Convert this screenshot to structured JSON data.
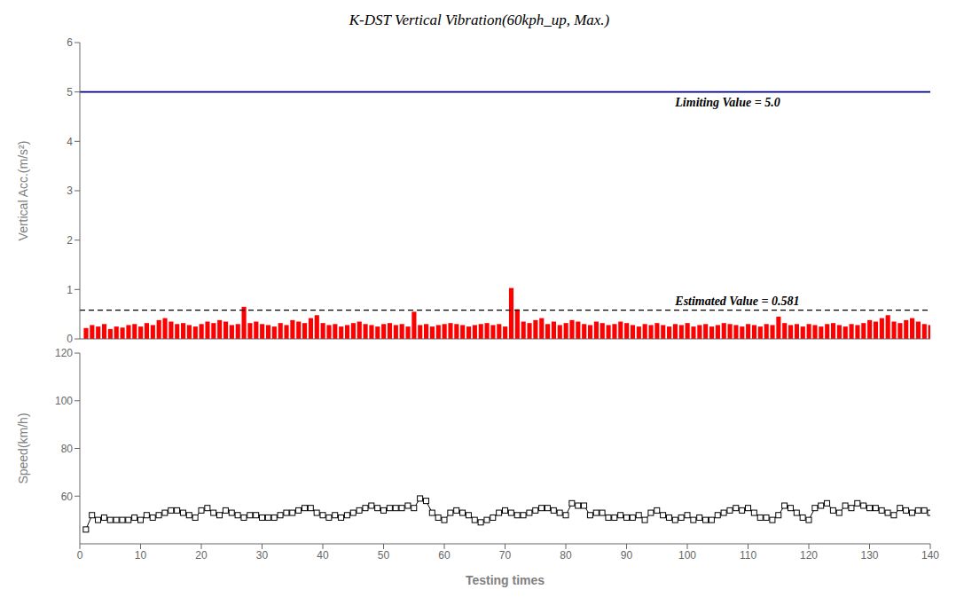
{
  "chart_data": [
    {
      "type": "bar",
      "title": "K-DST Vertical Vibration(60kph_up, Max.)",
      "ylabel": "Vertical Acc.(m/s²)",
      "x": [
        1,
        2,
        3,
        4,
        5,
        6,
        7,
        8,
        9,
        10,
        11,
        12,
        13,
        14,
        15,
        16,
        17,
        18,
        19,
        20,
        21,
        22,
        23,
        24,
        25,
        26,
        27,
        28,
        29,
        30,
        31,
        32,
        33,
        34,
        35,
        36,
        37,
        38,
        39,
        40,
        41,
        42,
        43,
        44,
        45,
        46,
        47,
        48,
        49,
        50,
        51,
        52,
        53,
        54,
        55,
        56,
        57,
        58,
        59,
        60,
        61,
        62,
        63,
        64,
        65,
        66,
        67,
        68,
        69,
        70,
        71,
        72,
        73,
        74,
        75,
        76,
        77,
        78,
        79,
        80,
        81,
        82,
        83,
        84,
        85,
        86,
        87,
        88,
        89,
        90,
        91,
        92,
        93,
        94,
        95,
        96,
        97,
        98,
        99,
        100,
        101,
        102,
        103,
        104,
        105,
        106,
        107,
        108,
        109,
        110,
        111,
        112,
        113,
        114,
        115,
        116,
        117,
        118,
        119,
        120,
        121,
        122,
        123,
        124,
        125,
        126,
        127,
        128,
        129,
        130,
        131,
        132,
        133,
        134,
        135,
        136,
        137,
        138,
        139,
        140
      ],
      "values": [
        0.22,
        0.28,
        0.25,
        0.3,
        0.2,
        0.25,
        0.23,
        0.28,
        0.3,
        0.25,
        0.32,
        0.28,
        0.38,
        0.42,
        0.35,
        0.3,
        0.32,
        0.28,
        0.25,
        0.3,
        0.35,
        0.32,
        0.38,
        0.35,
        0.28,
        0.3,
        0.65,
        0.32,
        0.35,
        0.3,
        0.28,
        0.25,
        0.32,
        0.28,
        0.38,
        0.35,
        0.32,
        0.42,
        0.48,
        0.32,
        0.28,
        0.3,
        0.25,
        0.28,
        0.32,
        0.35,
        0.3,
        0.28,
        0.25,
        0.3,
        0.32,
        0.28,
        0.3,
        0.25,
        0.55,
        0.28,
        0.3,
        0.25,
        0.28,
        0.3,
        0.32,
        0.3,
        0.28,
        0.25,
        0.28,
        0.3,
        0.32,
        0.28,
        0.3,
        0.25,
        1.03,
        0.6,
        0.35,
        0.32,
        0.38,
        0.42,
        0.3,
        0.35,
        0.28,
        0.32,
        0.38,
        0.35,
        0.3,
        0.28,
        0.35,
        0.32,
        0.28,
        0.3,
        0.35,
        0.32,
        0.28,
        0.25,
        0.3,
        0.28,
        0.32,
        0.28,
        0.25,
        0.3,
        0.28,
        0.32,
        0.25,
        0.28,
        0.3,
        0.25,
        0.28,
        0.32,
        0.3,
        0.28,
        0.25,
        0.3,
        0.28,
        0.25,
        0.3,
        0.28,
        0.45,
        0.32,
        0.28,
        0.3,
        0.25,
        0.3,
        0.28,
        0.25,
        0.3,
        0.32,
        0.28,
        0.25,
        0.3,
        0.28,
        0.32,
        0.38,
        0.35,
        0.42,
        0.48,
        0.35,
        0.32,
        0.38,
        0.42,
        0.35,
        0.3,
        0.28
      ],
      "color": "#FF0000",
      "xlim": [
        0,
        140
      ],
      "xticks": [
        0,
        10,
        20,
        30,
        40,
        50,
        60,
        70,
        80,
        90,
        100,
        110,
        120,
        130,
        140
      ],
      "ylim": [
        0,
        6
      ],
      "yticks": [
        0,
        1,
        2,
        3,
        4,
        5,
        6
      ],
      "tick_labels": "y",
      "grid": false,
      "lines": [
        {
          "value": 5.0,
          "label": "Limiting Value = 5.0",
          "color": "#00008B",
          "line_style": "solid"
        },
        {
          "value": 0.581,
          "label": "Estimated Value = 0.581",
          "color": "#000000",
          "line_style": "dashed"
        }
      ]
    },
    {
      "type": "line",
      "xlabel": "Testing times",
      "ylabel": "Speed(km/h)",
      "x": [
        1,
        2,
        3,
        4,
        5,
        6,
        7,
        8,
        9,
        10,
        11,
        12,
        13,
        14,
        15,
        16,
        17,
        18,
        19,
        20,
        21,
        22,
        23,
        24,
        25,
        26,
        27,
        28,
        29,
        30,
        31,
        32,
        33,
        34,
        35,
        36,
        37,
        38,
        39,
        40,
        41,
        42,
        43,
        44,
        45,
        46,
        47,
        48,
        49,
        50,
        51,
        52,
        53,
        54,
        55,
        56,
        57,
        58,
        59,
        60,
        61,
        62,
        63,
        64,
        65,
        66,
        67,
        68,
        69,
        70,
        71,
        72,
        73,
        74,
        75,
        76,
        77,
        78,
        79,
        80,
        81,
        82,
        83,
        84,
        85,
        86,
        87,
        88,
        89,
        90,
        91,
        92,
        93,
        94,
        95,
        96,
        97,
        98,
        99,
        100,
        101,
        102,
        103,
        104,
        105,
        106,
        107,
        108,
        109,
        110,
        111,
        112,
        113,
        114,
        115,
        116,
        117,
        118,
        119,
        120,
        121,
        122,
        123,
        124,
        125,
        126,
        127,
        128,
        129,
        130,
        131,
        132,
        133,
        134,
        135,
        136,
        137,
        138,
        139,
        140
      ],
      "values": [
        46,
        52,
        50,
        51,
        50,
        50,
        50,
        50,
        51,
        50,
        52,
        51,
        52,
        53,
        54,
        54,
        53,
        52,
        51,
        54,
        55,
        53,
        52,
        54,
        53,
        52,
        51,
        52,
        52,
        51,
        51,
        51,
        52,
        53,
        53,
        54,
        55,
        55,
        53,
        52,
        51,
        52,
        51,
        52,
        53,
        54,
        55,
        56,
        55,
        54,
        55,
        55,
        55,
        56,
        55,
        59,
        58,
        53,
        51,
        50,
        53,
        54,
        53,
        52,
        50,
        49,
        50,
        51,
        53,
        54,
        53,
        52,
        52,
        53,
        54,
        55,
        55,
        54,
        53,
        52,
        57,
        56,
        56,
        52,
        53,
        53,
        51,
        51,
        52,
        51,
        51,
        52,
        50,
        53,
        54,
        52,
        51,
        50,
        51,
        52,
        50,
        51,
        50,
        50,
        52,
        53,
        54,
        55,
        54,
        55,
        53,
        51,
        51,
        50,
        52,
        56,
        55,
        53,
        51,
        50,
        55,
        56,
        57,
        54,
        53,
        56,
        55,
        57,
        56,
        55,
        55,
        54,
        53,
        52,
        55,
        54,
        53,
        54,
        54,
        53
      ],
      "color": "#000000",
      "marker": "square",
      "xlim": [
        0,
        140
      ],
      "xticks": [
        0,
        10,
        20,
        30,
        40,
        50,
        60,
        70,
        80,
        90,
        100,
        110,
        120,
        130,
        140
      ],
      "ylim": [
        40,
        120
      ],
      "yticks": [
        60,
        80,
        100,
        120
      ],
      "grid": false
    }
  ]
}
